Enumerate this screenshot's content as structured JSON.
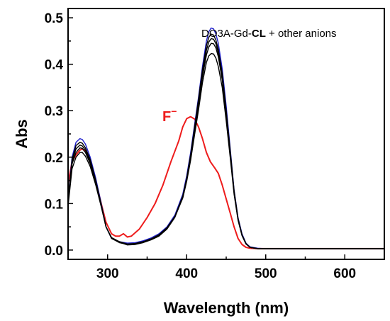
{
  "chart_data": {
    "type": "line",
    "xlabel": "Wavelength (nm)",
    "ylabel": "Abs",
    "xlim": [
      250,
      650
    ],
    "ylim": [
      -0.02,
      0.52
    ],
    "x_ticks": [
      300,
      400,
      500,
      600
    ],
    "y_ticks": [
      0.0,
      0.1,
      0.2,
      0.3,
      0.4,
      0.5
    ],
    "y_tick_labels": [
      "0.0",
      "0.1",
      "0.2",
      "0.3",
      "0.4",
      "0.5"
    ],
    "grid": false,
    "legend_text": {
      "pre": "DO3A-Gd-",
      "bold": "CL",
      "post": " + other anions"
    },
    "annotation": {
      "text": "F",
      "sup": "−",
      "color": "#ee1c1c"
    },
    "series": [
      {
        "color": "#ee1c1c",
        "x": [
          250,
          255,
          260,
          265,
          268,
          272,
          278,
          285,
          292,
          298,
          305,
          310,
          315,
          320,
          325,
          330,
          340,
          350,
          360,
          370,
          380,
          390,
          395,
          400,
          405,
          410,
          415,
          420,
          425,
          430,
          435,
          440,
          445,
          450,
          455,
          460,
          465,
          470,
          475,
          480,
          490,
          500,
          520,
          550,
          600,
          650
        ],
        "y": [
          0.145,
          0.19,
          0.205,
          0.215,
          0.218,
          0.212,
          0.19,
          0.15,
          0.1,
          0.06,
          0.035,
          0.03,
          0.03,
          0.035,
          0.028,
          0.03,
          0.045,
          0.07,
          0.1,
          0.14,
          0.19,
          0.235,
          0.265,
          0.283,
          0.287,
          0.282,
          0.265,
          0.24,
          0.21,
          0.19,
          0.178,
          0.165,
          0.14,
          0.11,
          0.08,
          0.05,
          0.025,
          0.012,
          0.006,
          0.004,
          0.003,
          0.003,
          0.003,
          0.003,
          0.003,
          0.003
        ]
      },
      {
        "color": "#1f1fcc",
        "x": [
          250,
          255,
          260,
          265,
          268,
          272,
          278,
          285,
          292,
          298,
          305,
          315,
          325,
          335,
          345,
          355,
          365,
          375,
          385,
          395,
          400,
          405,
          410,
          415,
          420,
          425,
          428,
          431,
          434,
          437,
          440,
          445,
          450,
          455,
          460,
          465,
          470,
          475,
          480,
          490,
          500,
          520,
          550,
          600,
          650
        ],
        "y": [
          0.11,
          0.2,
          0.232,
          0.24,
          0.238,
          0.228,
          0.2,
          0.155,
          0.1,
          0.05,
          0.025,
          0.018,
          0.015,
          0.016,
          0.02,
          0.026,
          0.035,
          0.05,
          0.075,
          0.12,
          0.16,
          0.21,
          0.27,
          0.33,
          0.395,
          0.45,
          0.47,
          0.478,
          0.476,
          0.465,
          0.445,
          0.39,
          0.31,
          0.22,
          0.13,
          0.07,
          0.035,
          0.015,
          0.007,
          0.004,
          0.003,
          0.003,
          0.003,
          0.003,
          0.003
        ]
      },
      {
        "color": "#000000",
        "x": [
          250,
          255,
          260,
          265,
          268,
          272,
          278,
          285,
          292,
          298,
          305,
          315,
          325,
          335,
          345,
          355,
          365,
          375,
          385,
          395,
          400,
          405,
          410,
          415,
          420,
          425,
          428,
          431,
          434,
          437,
          440,
          445,
          450,
          455,
          460,
          465,
          470,
          475,
          480,
          490,
          500,
          520,
          550,
          600,
          650
        ],
        "y": [
          0.11,
          0.195,
          0.225,
          0.232,
          0.23,
          0.22,
          0.195,
          0.15,
          0.098,
          0.05,
          0.025,
          0.016,
          0.013,
          0.014,
          0.018,
          0.024,
          0.032,
          0.047,
          0.072,
          0.116,
          0.155,
          0.205,
          0.265,
          0.325,
          0.388,
          0.44,
          0.458,
          0.465,
          0.463,
          0.452,
          0.432,
          0.38,
          0.3,
          0.215,
          0.128,
          0.068,
          0.033,
          0.014,
          0.006,
          0.003,
          0.003,
          0.003,
          0.003,
          0.003,
          0.003
        ]
      },
      {
        "color": "#000000",
        "x": [
          250,
          255,
          260,
          265,
          268,
          272,
          278,
          285,
          292,
          298,
          305,
          315,
          325,
          335,
          345,
          355,
          365,
          375,
          385,
          395,
          400,
          405,
          410,
          415,
          420,
          425,
          428,
          431,
          434,
          437,
          440,
          445,
          450,
          455,
          460,
          465,
          470,
          475,
          480,
          490,
          500,
          520,
          550,
          600,
          650
        ],
        "y": [
          0.105,
          0.19,
          0.218,
          0.226,
          0.224,
          0.215,
          0.19,
          0.147,
          0.096,
          0.05,
          0.026,
          0.017,
          0.011,
          0.012,
          0.016,
          0.022,
          0.03,
          0.045,
          0.07,
          0.113,
          0.152,
          0.2,
          0.26,
          0.318,
          0.38,
          0.43,
          0.448,
          0.455,
          0.454,
          0.444,
          0.424,
          0.373,
          0.295,
          0.212,
          0.126,
          0.067,
          0.032,
          0.014,
          0.006,
          0.003,
          0.003,
          0.003,
          0.003,
          0.003,
          0.003
        ]
      },
      {
        "color": "#000000",
        "x": [
          250,
          255,
          260,
          265,
          268,
          272,
          278,
          285,
          292,
          298,
          305,
          315,
          325,
          335,
          345,
          355,
          365,
          375,
          385,
          395,
          400,
          405,
          410,
          415,
          420,
          425,
          428,
          431,
          434,
          437,
          440,
          445,
          450,
          455,
          460,
          465,
          470,
          475,
          480,
          490,
          500,
          520,
          550,
          600,
          650
        ],
        "y": [
          0.1,
          0.185,
          0.21,
          0.22,
          0.219,
          0.21,
          0.186,
          0.145,
          0.095,
          0.05,
          0.026,
          0.016,
          0.012,
          0.013,
          0.017,
          0.023,
          0.031,
          0.046,
          0.071,
          0.112,
          0.15,
          0.197,
          0.255,
          0.312,
          0.372,
          0.42,
          0.437,
          0.445,
          0.444,
          0.435,
          0.416,
          0.366,
          0.29,
          0.208,
          0.124,
          0.066,
          0.032,
          0.014,
          0.006,
          0.003,
          0.003,
          0.003,
          0.003,
          0.003,
          0.003
        ]
      },
      {
        "color": "#000000",
        "x": [
          250,
          255,
          260,
          265,
          268,
          272,
          278,
          285,
          292,
          298,
          305,
          315,
          325,
          335,
          345,
          355,
          365,
          375,
          385,
          395,
          400,
          405,
          410,
          415,
          420,
          425,
          428,
          431,
          434,
          437,
          440,
          445,
          450,
          455,
          460,
          465,
          470,
          475,
          480,
          490,
          500,
          520,
          550,
          600,
          650
        ],
        "y": [
          0.095,
          0.175,
          0.2,
          0.21,
          0.21,
          0.202,
          0.18,
          0.14,
          0.093,
          0.05,
          0.027,
          0.018,
          0.013,
          0.014,
          0.018,
          0.024,
          0.033,
          0.048,
          0.072,
          0.112,
          0.148,
          0.193,
          0.248,
          0.302,
          0.36,
          0.404,
          0.418,
          0.423,
          0.422,
          0.413,
          0.395,
          0.35,
          0.278,
          0.2,
          0.12,
          0.064,
          0.031,
          0.013,
          0.006,
          0.003,
          0.003,
          0.003,
          0.003,
          0.003,
          0.003
        ]
      }
    ]
  }
}
